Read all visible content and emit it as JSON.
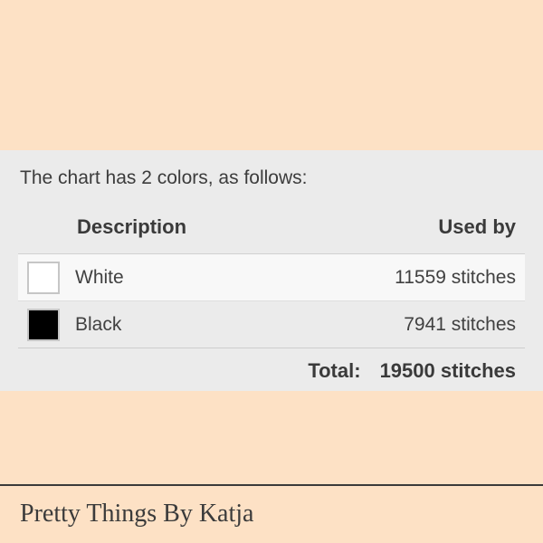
{
  "page": {
    "background_color": "#fde1c5",
    "panel_background": "#ebebeb"
  },
  "intro": {
    "text": "The chart has 2 colors, as follows:"
  },
  "table": {
    "headers": {
      "description": "Description",
      "used_by": "Used by"
    },
    "rows": [
      {
        "name": "White",
        "swatch_color": "#ffffff",
        "used_by": "11559 stitches"
      },
      {
        "name": "Black",
        "swatch_color": "#000000",
        "used_by": "7941 stitches"
      }
    ],
    "total_label": "Total:",
    "total_value": "19500 stitches"
  },
  "footer": {
    "brand": "Pretty Things By Katja"
  }
}
